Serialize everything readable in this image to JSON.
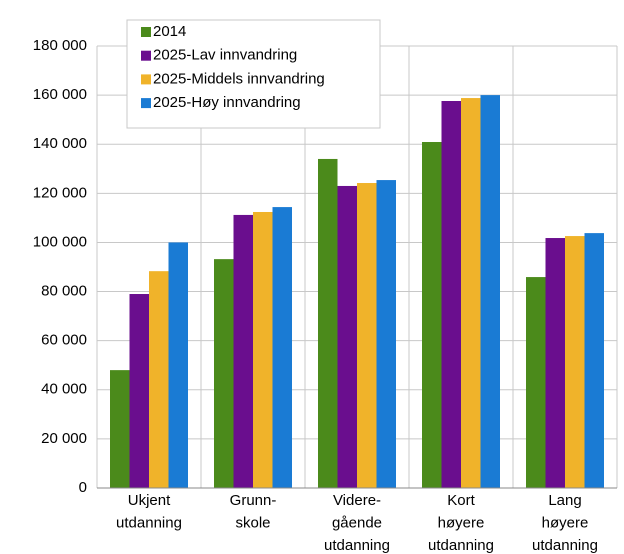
{
  "chart_data": {
    "type": "bar",
    "categories": [
      [
        "Ukjent",
        "utdanning"
      ],
      [
        "Grunn-",
        "skole"
      ],
      [
        "Videre-",
        "gående",
        "utdanning"
      ],
      [
        "Kort",
        "høyere",
        "utdanning"
      ],
      [
        "Lang",
        "høyere",
        "utdanning"
      ]
    ],
    "series": [
      {
        "name": "2014",
        "color": "#4b8a1b",
        "values": [
          48000,
          93200,
          134000,
          140900,
          85900
        ]
      },
      {
        "name": "2025-Lav innvandring",
        "color": "#6a0e8e",
        "values": [
          79000,
          111200,
          123000,
          157600,
          101800
        ]
      },
      {
        "name": "2025-Middels innvandring",
        "color": "#f0b32a",
        "values": [
          88300,
          112400,
          124200,
          158800,
          102600
        ]
      },
      {
        "name": "2025-Høy innvandring",
        "color": "#1a7bd4",
        "values": [
          100000,
          114400,
          125400,
          160000,
          103800
        ]
      }
    ],
    "ylim": [
      0,
      180000
    ],
    "yticks": [
      0,
      {
        "value": 20000,
        "label": "20 000"
      },
      {
        "value": 40000,
        "label": "40 000"
      },
      {
        "value": 60000,
        "label": "60 000"
      },
      {
        "value": 80000,
        "label": "80 000"
      },
      {
        "value": 100000,
        "label": "100 000"
      },
      {
        "value": 120000,
        "label": "120 000"
      },
      {
        "value": 140000,
        "label": "140 000"
      },
      {
        "value": 160000,
        "label": "160 000"
      },
      {
        "value": 180000,
        "label": "180 000"
      }
    ],
    "grid": true,
    "legend": "top-left"
  }
}
